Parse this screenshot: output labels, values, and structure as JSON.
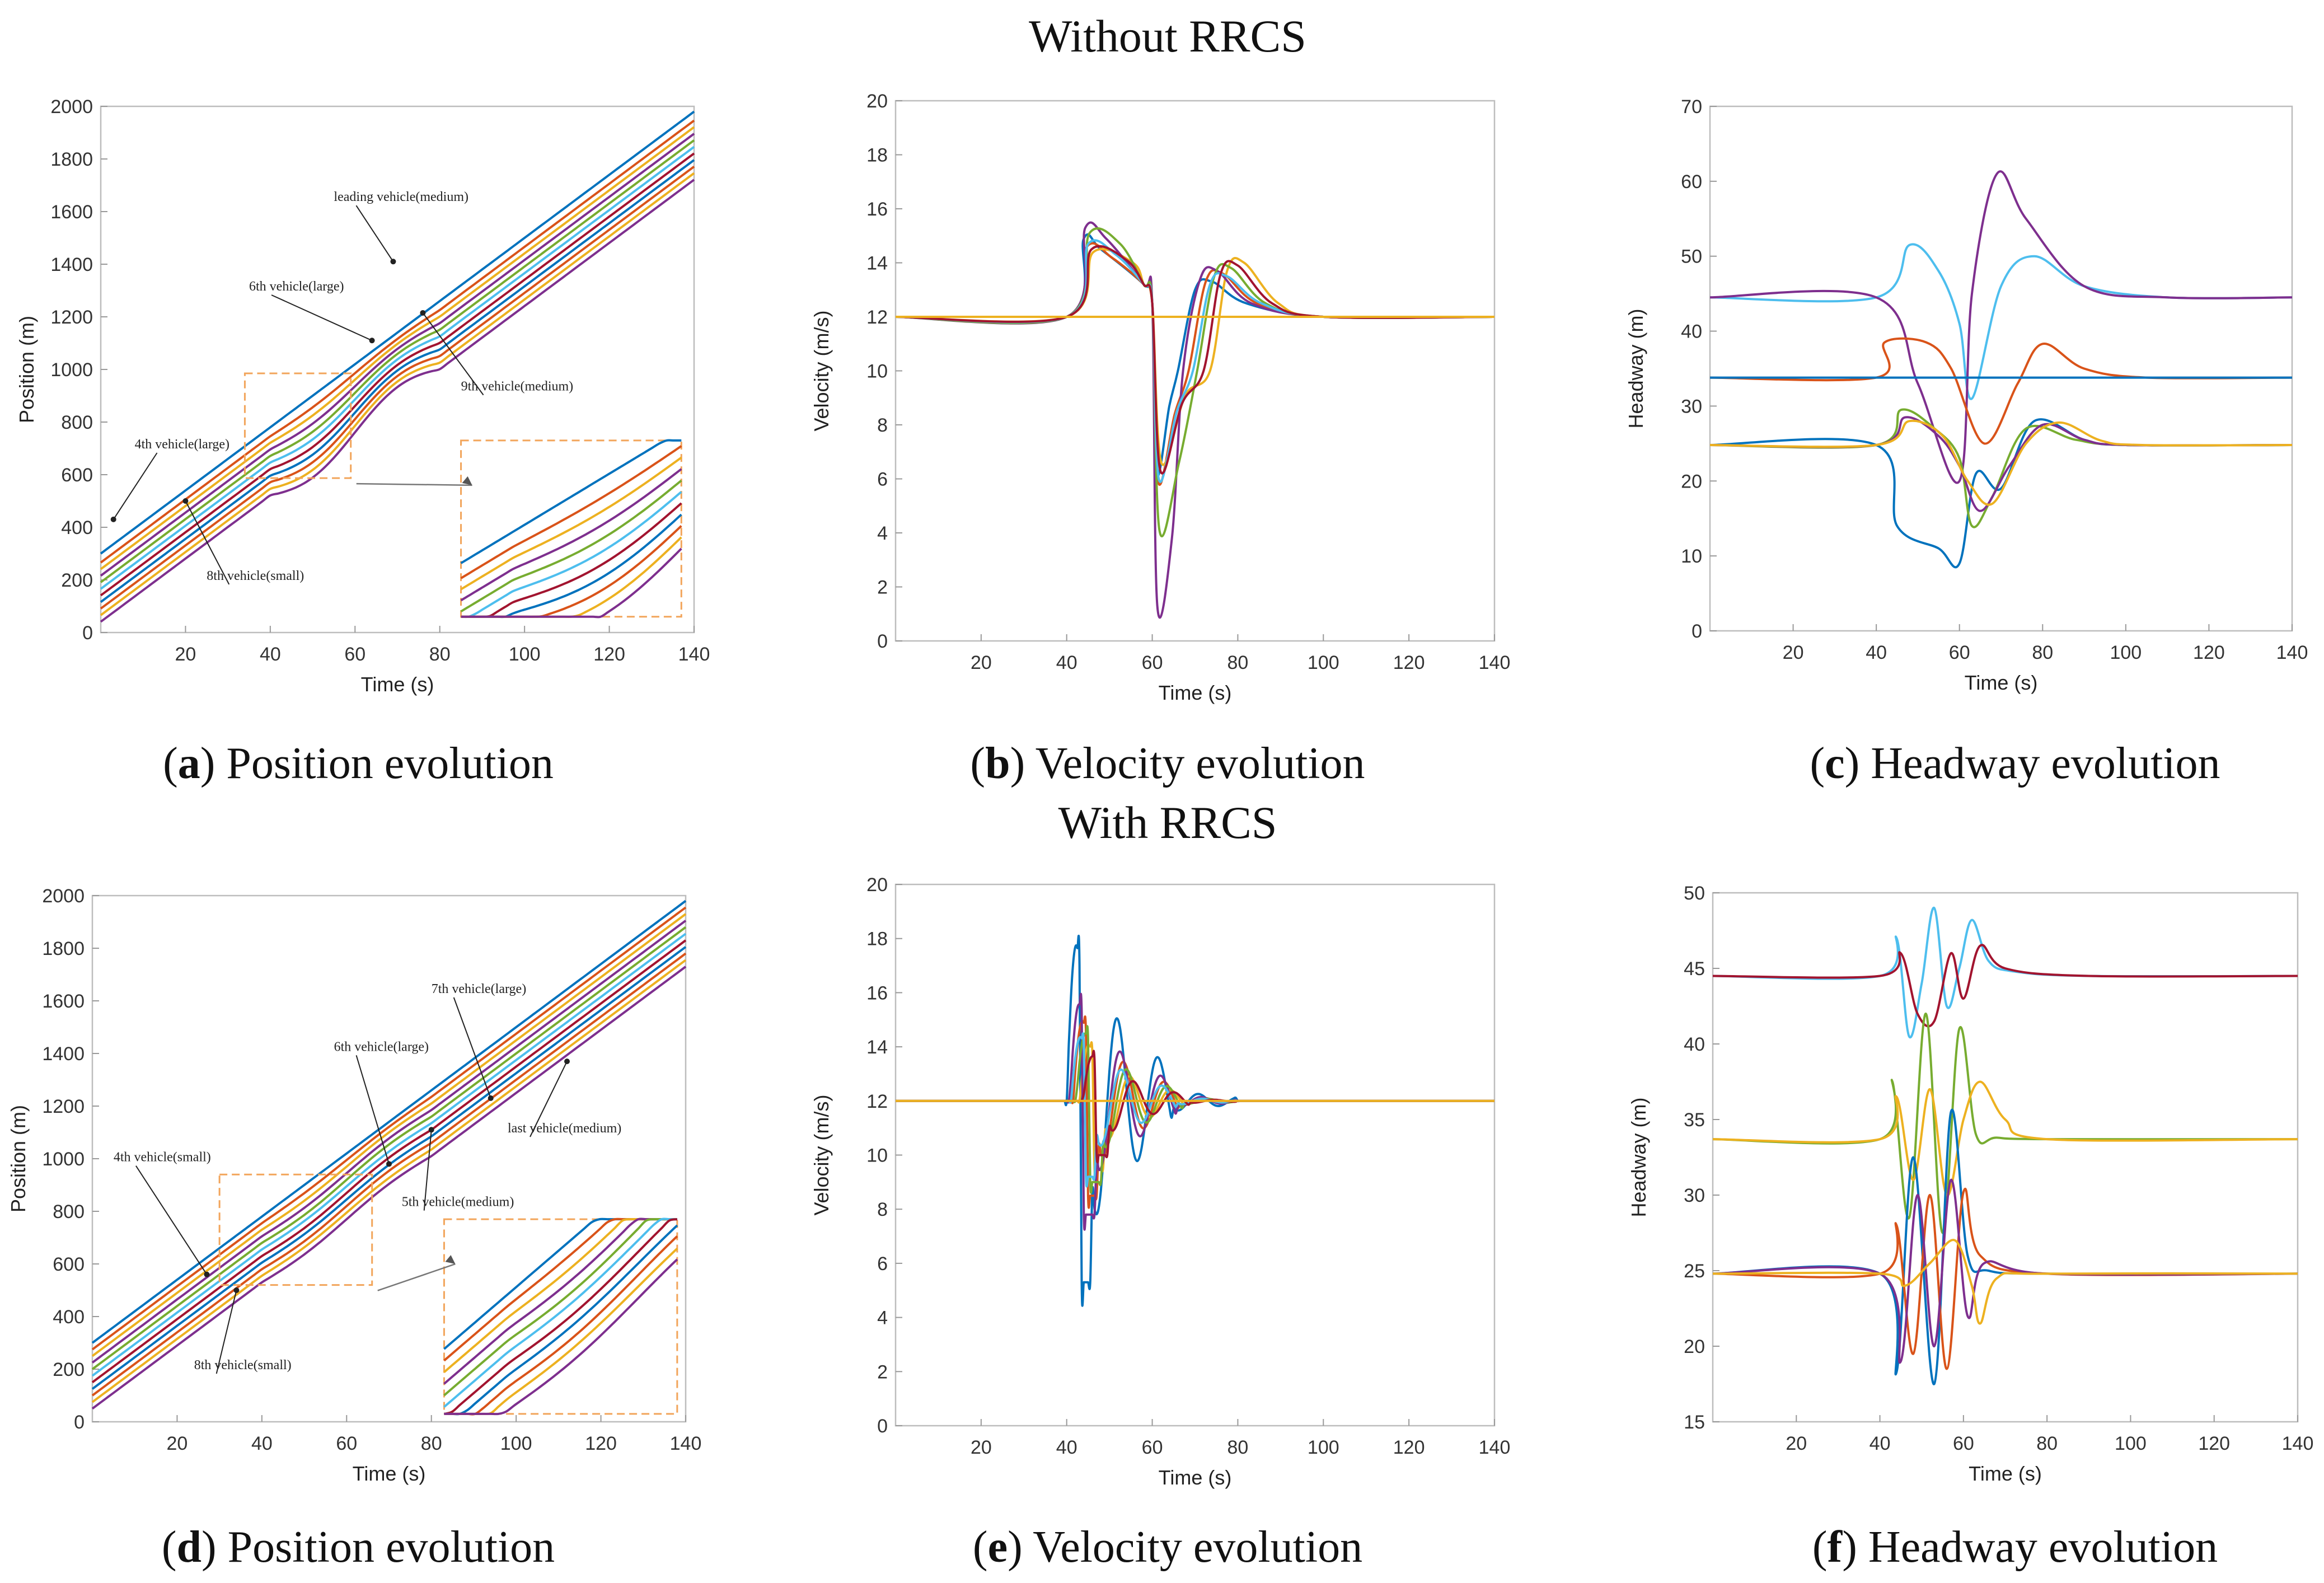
{
  "section_titles": [
    "Without RRCS",
    "With RRCS"
  ],
  "colors": [
    "#0072BD",
    "#D95319",
    "#EDB120",
    "#7E2F8E",
    "#77AC30",
    "#4DBEEE",
    "#A2142F"
  ],
  "chart_data": [
    {
      "id": "a",
      "type": "line",
      "caption_letter": "a",
      "caption_text": "Position evolution",
      "xlabel": "Time (s)",
      "ylabel": "Position (m)",
      "xlim": [
        0,
        140
      ],
      "ylim": [
        0,
        2000
      ],
      "xticks": [
        20,
        40,
        60,
        80,
        100,
        120,
        140
      ],
      "yticks": [
        0,
        200,
        400,
        600,
        800,
        1000,
        1200,
        1400,
        1600,
        1800,
        2000
      ],
      "model": "position",
      "speed": 12,
      "x0": 0,
      "x1": 140,
      "offsets": [
        300,
        266,
        241,
        216,
        191,
        166,
        141,
        116,
        91,
        66,
        41
      ],
      "bumps": [
        0,
        10,
        16,
        22,
        28,
        32,
        36,
        40,
        44,
        48,
        52
      ],
      "annotations": [
        {
          "text": "leading vehicle(medium)",
          "tx": 55,
          "ty": 1640,
          "ax": 69,
          "ay": 1410
        },
        {
          "text": "6th vehicle(large)",
          "tx": 35,
          "ty": 1300,
          "ax": 64,
          "ay": 1110
        },
        {
          "text": "9th vehicle(medium)",
          "tx": 85,
          "ty": 920,
          "ax": 76,
          "ay": 1215
        },
        {
          "text": "4th vehicle(large)",
          "tx": 8,
          "ty": 700,
          "ax": 3,
          "ay": 430
        },
        {
          "text": "8th vehicle(small)",
          "tx": 25,
          "ty": 200,
          "ax": 20,
          "ay": 500
        }
      ],
      "zoom_box": [
        34,
        59,
        587,
        985
      ],
      "inset": [
        85,
        137,
        60,
        730
      ]
    },
    {
      "id": "b",
      "type": "line",
      "caption_letter": "b",
      "caption_text": "Velocity evolution",
      "xlabel": "Time (s)",
      "ylabel": "Velocity (m/s)",
      "xlim": [
        0,
        140
      ],
      "ylim": [
        0,
        20
      ],
      "xticks": [
        20,
        40,
        60,
        80,
        100,
        120,
        140
      ],
      "yticks": [
        0,
        2,
        4,
        6,
        8,
        10,
        12,
        14,
        16,
        18,
        20
      ],
      "model": "velocity_a",
      "baseline": 12,
      "series_params": [
        {
          "delay": 0,
          "peak": 14.9,
          "min": 6.2,
          "over": 13.3
        },
        {
          "delay": 2.5,
          "peak": 14.6,
          "min": 5.9,
          "over": 13.6
        },
        {
          "delay": 7.5,
          "peak": 14.4,
          "min": 6.6,
          "over": 14.0
        },
        {
          "delay": 1.2,
          "peak": 15.3,
          "min": 1.3,
          "over": 13.7
        },
        {
          "delay": 4.5,
          "peak": 15.1,
          "min": 4.1,
          "over": 13.8
        },
        {
          "delay": 3.5,
          "peak": 14.7,
          "min": 6.0,
          "over": 13.5
        },
        {
          "delay": 6.0,
          "peak": 14.5,
          "min": 6.3,
          "over": 13.9
        }
      ]
    },
    {
      "id": "c",
      "type": "line",
      "caption_letter": "c",
      "caption_text": "Headway evolution",
      "xlabel": "Time (s)",
      "ylabel": "Headway (m)",
      "xlim": [
        0,
        140
      ],
      "ylim": [
        0,
        70
      ],
      "xticks": [
        20,
        40,
        60,
        80,
        100,
        120,
        140
      ],
      "yticks": [
        0,
        10,
        20,
        30,
        40,
        50,
        60,
        70
      ],
      "model": "headway_c",
      "series": [
        {
          "base": 44.5,
          "pts": [
            [
              40,
              44.5
            ],
            [
              48,
              51.5
            ],
            [
              55,
              48
            ],
            [
              60,
              41
            ],
            [
              63,
              31
            ],
            [
              70,
              46
            ],
            [
              78,
              50
            ],
            [
              90,
              46
            ],
            [
              110,
              44.5
            ]
          ]
        },
        {
          "base": 44.5,
          "pts": [
            [
              40,
              44.5
            ],
            [
              50,
              33
            ],
            [
              60,
              20
            ],
            [
              63,
              45
            ],
            [
              69,
              61
            ],
            [
              76,
              55
            ],
            [
              90,
              46
            ],
            [
              110,
              44.5
            ]
          ]
        },
        {
          "base": 33.8,
          "pts": [
            [
              40,
              33.8
            ],
            [
              42,
              38.5
            ],
            [
              52,
              38.5
            ],
            [
              58,
              35
            ],
            [
              66,
              25
            ],
            [
              74,
              33
            ],
            [
              80,
              38.3
            ],
            [
              90,
              35
            ],
            [
              105,
              33.8
            ]
          ]
        },
        {
          "base": 33.8,
          "pts": [
            [
              40,
              33.8
            ],
            [
              140,
              33.8
            ]
          ]
        },
        {
          "base": 24.8,
          "pts": [
            [
              40,
              24.8
            ],
            [
              45,
              14
            ],
            [
              55,
              11
            ],
            [
              60,
              9
            ],
            [
              64,
              21
            ],
            [
              70,
              19
            ],
            [
              78,
              28
            ],
            [
              90,
              25.5
            ],
            [
              100,
              24.8
            ]
          ]
        },
        {
          "base": 24.8,
          "pts": [
            [
              40,
              24.8
            ],
            [
              46,
              29.5
            ],
            [
              54,
              27
            ],
            [
              60,
              23
            ],
            [
              63,
              14
            ],
            [
              68,
              18
            ],
            [
              76,
              27
            ],
            [
              88,
              25.5
            ],
            [
              100,
              24.8
            ]
          ]
        },
        {
          "base": 24.8,
          "pts": [
            [
              40,
              24.8
            ],
            [
              47,
              28.5
            ],
            [
              55,
              26
            ],
            [
              60,
              22
            ],
            [
              65,
              16
            ],
            [
              72,
              22
            ],
            [
              80,
              27.5
            ],
            [
              90,
              25.5
            ],
            [
              100,
              24.8
            ]
          ]
        },
        {
          "base": 24.8,
          "pts": [
            [
              40,
              24.8
            ],
            [
              48,
              28
            ],
            [
              56,
              26
            ],
            [
              62,
              20
            ],
            [
              68,
              17
            ],
            [
              76,
              25
            ],
            [
              84,
              27.8
            ],
            [
              94,
              25.4
            ],
            [
              104,
              24.8
            ]
          ]
        }
      ],
      "series_colors": [
        5,
        3,
        1,
        0,
        0,
        4,
        3,
        2
      ]
    },
    {
      "id": "d",
      "type": "line",
      "caption_letter": "d",
      "caption_text": "Position evolution",
      "xlabel": "Time (s)",
      "ylabel": "Position (m)",
      "xlim": [
        0,
        140
      ],
      "ylim": [
        0,
        2000
      ],
      "xticks": [
        20,
        40,
        60,
        80,
        100,
        120,
        140
      ],
      "yticks": [
        0,
        200,
        400,
        600,
        800,
        1000,
        1200,
        1400,
        1600,
        1800,
        2000
      ],
      "model": "position",
      "speed": 12,
      "x0": 0,
      "x1": 140,
      "offsets": [
        300,
        275,
        250,
        225,
        200,
        175,
        150,
        125,
        100,
        75,
        50
      ],
      "bumps": [
        0,
        6,
        10,
        12,
        14,
        12,
        14,
        12,
        14,
        12,
        14
      ],
      "annotations": [
        {
          "text": "7th vehicle(large)",
          "tx": 80,
          "ty": 1630,
          "ax": 94,
          "ay": 1230
        },
        {
          "text": "6th vehicle(large)",
          "tx": 57,
          "ty": 1410,
          "ax": 70,
          "ay": 980
        },
        {
          "text": "5th vehicle(medium)",
          "tx": 73,
          "ty": 820,
          "ax": 80,
          "ay": 1110
        },
        {
          "text": "last vehicle(medium)",
          "tx": 98,
          "ty": 1100,
          "ax": 112,
          "ay": 1370
        },
        {
          "text": "4th vehicle(small)",
          "tx": 5,
          "ty": 990,
          "ax": 27,
          "ay": 560
        },
        {
          "text": "8th vehicle(small)",
          "tx": 24,
          "ty": 200,
          "ax": 34,
          "ay": 500
        }
      ],
      "zoom_box": [
        30,
        66,
        520,
        940
      ],
      "inset": [
        83,
        138,
        30,
        770
      ]
    },
    {
      "id": "e",
      "type": "line",
      "caption_letter": "e",
      "caption_text": "Velocity evolution",
      "xlabel": "Time (s)",
      "ylabel": "Velocity (m/s)",
      "xlim": [
        0,
        140
      ],
      "ylim": [
        0,
        20
      ],
      "xticks": [
        20,
        40,
        60,
        80,
        100,
        120,
        140
      ],
      "yticks": [
        0,
        2,
        4,
        6,
        8,
        10,
        12,
        14,
        16,
        18,
        20
      ],
      "model": "velocity_e",
      "baseline": 12,
      "series_params": [
        {
          "delay": 0,
          "amp": 6.7,
          "damp": 0.9
        },
        {
          "delay": 1.5,
          "amp": 3.5,
          "damp": 0.8
        },
        {
          "delay": 3.0,
          "amp": 2.5,
          "damp": 0.7
        },
        {
          "delay": 0.7,
          "amp": 4.2,
          "damp": 0.85
        },
        {
          "delay": 2.2,
          "amp": 3.0,
          "damp": 0.75
        },
        {
          "delay": 1.0,
          "amp": 2.8,
          "damp": 0.8
        },
        {
          "delay": 3.8,
          "amp": 2.0,
          "damp": 0.7
        }
      ]
    },
    {
      "id": "f",
      "type": "line",
      "caption_letter": "f",
      "caption_text": "Headway evolution",
      "xlabel": "Time (s)",
      "ylabel": "Headway (m)",
      "xlim": [
        0,
        140
      ],
      "ylim": [
        15,
        50
      ],
      "xticks": [
        20,
        40,
        60,
        80,
        100,
        120,
        140
      ],
      "yticks": [
        15,
        20,
        25,
        30,
        35,
        40,
        45,
        50
      ],
      "model": "headway_f",
      "series": [
        {
          "base": 44.5,
          "pts": [
            [
              40,
              44.5
            ],
            [
              44,
              47
            ],
            [
              47,
              40.5
            ],
            [
              50,
              44
            ],
            [
              53,
              49
            ],
            [
              56,
              42.5
            ],
            [
              59,
              45
            ],
            [
              62,
              48.2
            ],
            [
              66,
              45.5
            ],
            [
              72,
              44.8
            ],
            [
              90,
              44.5
            ]
          ]
        },
        {
          "base": 44.5,
          "pts": [
            [
              40,
              44.5
            ],
            [
              45,
              46
            ],
            [
              49,
              42
            ],
            [
              53,
              41.5
            ],
            [
              57,
              46
            ],
            [
              60,
              43
            ],
            [
              64,
              46.5
            ],
            [
              70,
              45
            ],
            [
              90,
              44.5
            ]
          ]
        },
        {
          "base": 33.7,
          "pts": [
            [
              40,
              33.7
            ],
            [
              43,
              37.5
            ],
            [
              47,
              28.5
            ],
            [
              51,
              42
            ],
            [
              55,
              27.5
            ],
            [
              59,
              41
            ],
            [
              63,
              34
            ],
            [
              68,
              33.8
            ],
            [
              80,
              33.7
            ]
          ]
        },
        {
          "base": 33.7,
          "pts": [
            [
              40,
              33.7
            ],
            [
              44,
              36.5
            ],
            [
              48,
              31
            ],
            [
              52,
              37
            ],
            [
              56,
              30
            ],
            [
              60,
              35
            ],
            [
              64,
              37.5
            ],
            [
              70,
              35
            ],
            [
              80,
              33.7
            ]
          ]
        },
        {
          "base": 24.8,
          "pts": [
            [
              40,
              24.8
            ],
            [
              44,
              18.3
            ],
            [
              48,
              32.5
            ],
            [
              53,
              17.5
            ],
            [
              57,
              35.5
            ],
            [
              61,
              26
            ],
            [
              66,
              25
            ],
            [
              80,
              24.8
            ]
          ]
        },
        {
          "base": 24.8,
          "pts": [
            [
              40,
              24.8
            ],
            [
              44,
              28
            ],
            [
              48,
              19.5
            ],
            [
              52,
              30
            ],
            [
              56,
              18.5
            ],
            [
              60,
              30.2
            ],
            [
              64,
              26
            ],
            [
              80,
              24.8
            ]
          ]
        },
        {
          "base": 24.8,
          "pts": [
            [
              40,
              24.8
            ],
            [
              45,
              19
            ],
            [
              49,
              30
            ],
            [
              53,
              20
            ],
            [
              57,
              31
            ],
            [
              61,
              22
            ],
            [
              65,
              25.5
            ],
            [
              80,
              24.8
            ]
          ]
        },
        {
          "base": 24.8,
          "pts": [
            [
              40,
              24.8
            ],
            [
              46,
              24
            ],
            [
              52,
              25.5
            ],
            [
              58,
              27
            ],
            [
              62,
              24
            ],
            [
              64,
              21.5
            ],
            [
              68,
              24.5
            ],
            [
              80,
              24.8
            ]
          ]
        }
      ],
      "series_colors": [
        5,
        6,
        4,
        2,
        0,
        1,
        3,
        2
      ]
    }
  ]
}
